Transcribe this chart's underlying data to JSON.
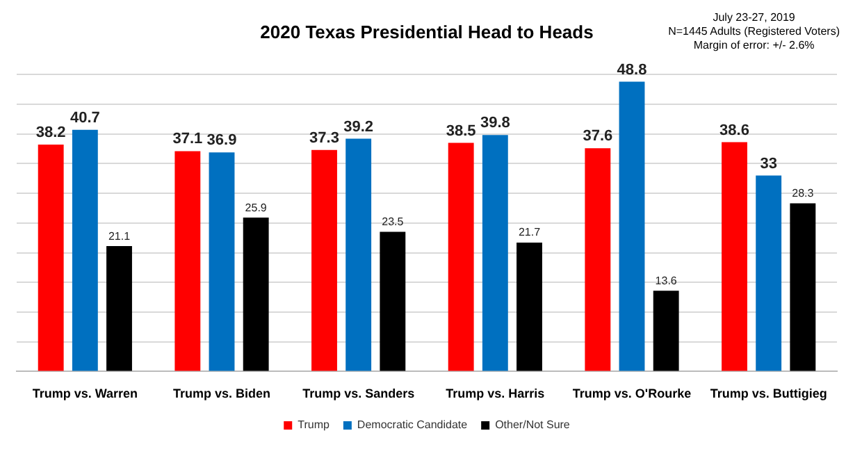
{
  "chart_data": {
    "type": "bar",
    "title": "2020 Texas Presidential Head to Heads",
    "annotations": [
      "July 23-27, 2019",
      "N=1445 Adults (Registered Voters)",
      "Margin of error: +/- 2.6%"
    ],
    "categories": [
      "Trump vs. Warren",
      "Trump vs. Biden",
      "Trump vs. Sanders",
      "Trump vs. Harris",
      "Trump vs. O'Rourke",
      "Trump vs. Buttigieg"
    ],
    "series": [
      {
        "name": "Trump",
        "color": "#ff0000",
        "values": [
          38.2,
          37.1,
          37.3,
          38.5,
          37.6,
          38.6
        ]
      },
      {
        "name": "Democratic Candidate",
        "color": "#0070c0",
        "values": [
          40.7,
          36.9,
          39.2,
          39.8,
          48.8,
          33
        ]
      },
      {
        "name": "Other/Not Sure",
        "color": "#000000",
        "values": [
          21.1,
          25.9,
          23.5,
          21.7,
          13.6,
          28.3
        ]
      }
    ],
    "ylim": [
      0,
      50
    ],
    "yticks": [
      0,
      5,
      10,
      15,
      20,
      25,
      30,
      35,
      40,
      45,
      50
    ],
    "grid": "y",
    "tick_labels": "x",
    "data_labels": true,
    "legend": "bottom"
  }
}
